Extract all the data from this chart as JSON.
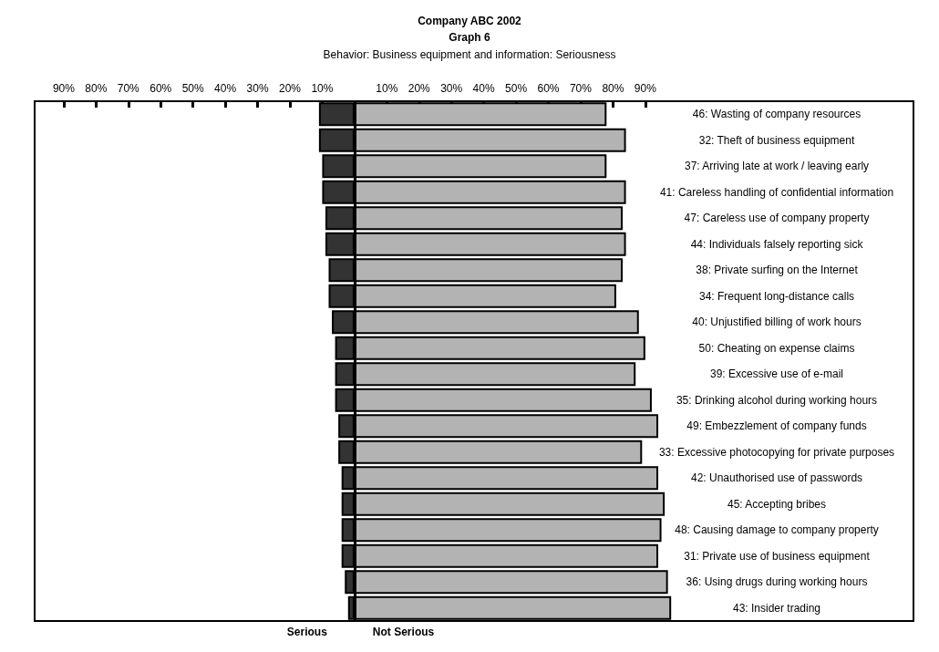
{
  "chart_data": {
    "type": "bar",
    "orientation": "horizontal",
    "stacked": true,
    "title": "Company ABC 2002",
    "subtitle": "Graph 6",
    "annotations": [
      "Behavior: Business equipment and information: Seriousness"
    ],
    "categories": [
      "46: Wasting of company resources",
      "32: Theft of business equipment",
      "37: Arriving late at work / leaving early",
      "41: Careless handling of confidential information",
      "47: Careless use of company property",
      "44: Individuals falsely reporting sick",
      "38: Private surfing on the Internet",
      "34: Frequent long-distance calls",
      "40: Unjustified billing of work hours",
      "50: Cheating on expense claims",
      "39: Excessive use of e-mail",
      "35: Drinking alcohol during working hours",
      "49: Embezzlement of company funds",
      "33: Excessive photocopying for private purposes",
      "42: Unauthorised use of passwords",
      "45: Accepting bribes",
      "48: Causing damage to company property",
      "31: Private use of business equipment",
      "36: Using drugs during working hours",
      "43: Insider trading"
    ],
    "series": [
      {
        "name": "Serious",
        "color": "#333333",
        "values": [
          -11,
          -11,
          -10,
          -10,
          -9,
          -9,
          -8,
          -8,
          -7,
          -6,
          -6,
          -6,
          -5,
          -5,
          -4,
          -4,
          -4,
          -4,
          -3,
          -2
        ]
      },
      {
        "name": "Not Serious",
        "color": "#b3b3b3",
        "values": [
          78,
          84,
          78,
          84,
          83,
          84,
          83,
          81,
          88,
          90,
          87,
          92,
          94,
          89,
          94,
          96,
          95,
          94,
          97,
          98
        ]
      }
    ],
    "xlim": [
      -99,
      173
    ],
    "xticks": [
      {
        "value": -90,
        "label": "90%"
      },
      {
        "value": -80,
        "label": "80%"
      },
      {
        "value": -70,
        "label": "70%"
      },
      {
        "value": -60,
        "label": "60%"
      },
      {
        "value": -50,
        "label": "50%"
      },
      {
        "value": -40,
        "label": "40%"
      },
      {
        "value": -30,
        "label": "30%"
      },
      {
        "value": -20,
        "label": "20%"
      },
      {
        "value": -10,
        "label": "10%"
      },
      {
        "value": 0,
        "label": null
      },
      {
        "value": 10,
        "label": "10%"
      },
      {
        "value": 20,
        "label": "20%"
      },
      {
        "value": 30,
        "label": "30%"
      },
      {
        "value": 40,
        "label": "40%"
      },
      {
        "value": 50,
        "label": "50%"
      },
      {
        "value": 60,
        "label": "60%"
      },
      {
        "value": 70,
        "label": "70%"
      },
      {
        "value": 80,
        "label": "80%"
      },
      {
        "value": 90,
        "label": "90%"
      }
    ],
    "ref_lines": [
      {
        "axis": "x",
        "value": 0,
        "color": "#000000"
      }
    ],
    "grid": false,
    "legend": "bottom"
  }
}
